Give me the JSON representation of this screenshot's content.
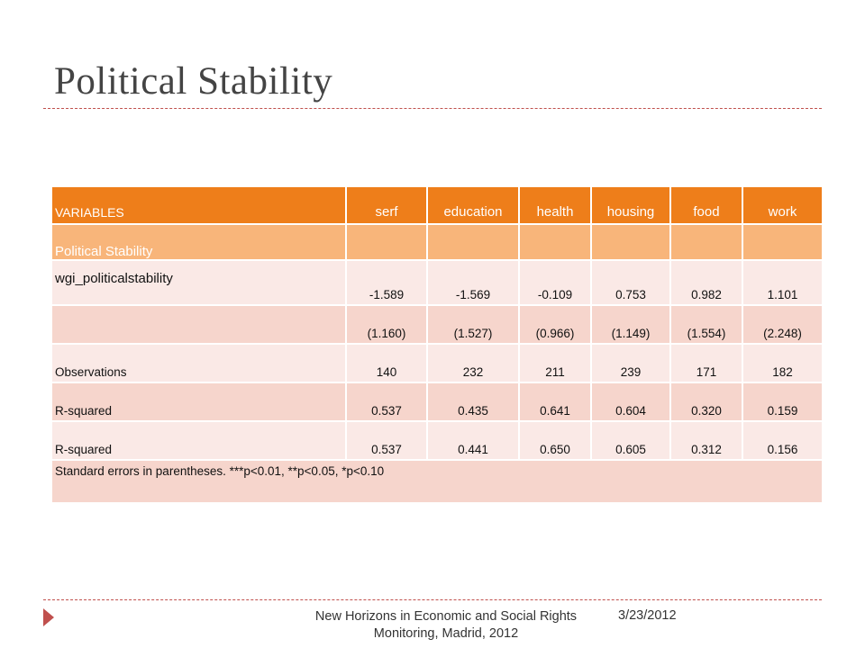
{
  "slide": {
    "title": "Political Stability",
    "footer_text": "New Horizons in Economic and Social Rights Monitoring, Madrid, 2012",
    "date": "3/23/2012"
  },
  "table": {
    "headers": [
      "VARIABLES",
      "serf",
      "education",
      "health",
      "housing",
      "food",
      "work"
    ],
    "section_label": "Political Stability",
    "rows": [
      {
        "label": "wgi_politicalstability",
        "values": [
          "-1.589",
          "-1.569",
          "-0.109",
          "0.753",
          "0.982",
          "1.101"
        ]
      },
      {
        "label": "",
        "values": [
          "(1.160)",
          "(1.527)",
          "(0.966)",
          "(1.149)",
          "(1.554)",
          "(2.248)"
        ]
      },
      {
        "label": "Observations",
        "values": [
          "140",
          "232",
          "211",
          "239",
          "171",
          "182"
        ]
      },
      {
        "label": "R-squared",
        "values": [
          "0.537",
          "0.435",
          "0.641",
          "0.604",
          "0.320",
          "0.159"
        ]
      },
      {
        "label": "R-squared",
        "values": [
          "0.537",
          "0.441",
          "0.650",
          "0.605",
          "0.312",
          "0.156"
        ]
      }
    ],
    "note": "Standard errors in parentheses.  ***p<0.01, **p<0.05, *p<0.10"
  },
  "colors": {
    "header_bg": "#ee7e1a",
    "section_bg": "#f8b57a",
    "row_light": "#fae9e6",
    "row_dark": "#f6d5cc",
    "accent": "#c0504d"
  },
  "icons": {
    "footer_bullet": "triangle-arrow-icon"
  }
}
